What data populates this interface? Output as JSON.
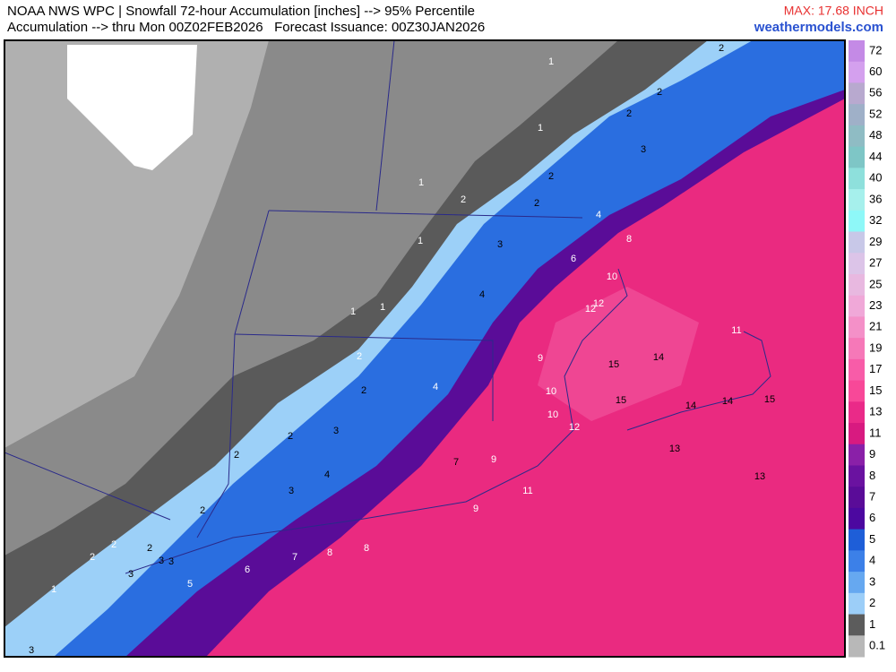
{
  "header": {
    "title_line1": "NOAA NWS WPC | Snowfall 72-hour Accumulation [inches] --> 95% Percentile",
    "title_line2": "Accumulation --> thru Mon 00Z02FEB2026   Forecast Issuance: 00Z30JAN2026",
    "max_label": "MAX: 17.68 INCH",
    "site": "weathermodels.com"
  },
  "colorbar": {
    "levels": [
      72,
      60,
      56,
      52,
      48,
      44,
      40,
      36,
      32,
      29,
      27,
      25,
      23,
      21,
      19,
      17,
      15,
      13,
      11,
      9,
      8,
      7,
      6,
      5,
      4,
      3,
      2,
      1,
      0.1
    ],
    "colors": [
      "#c48ae6",
      "#d4a0ee",
      "#b8a9cf",
      "#9fb0c8",
      "#8fbcc4",
      "#7ec6c6",
      "#8ee0dc",
      "#a6f0ec",
      "#8ef8f8",
      "#c8c8e8",
      "#dcc4e8",
      "#e8b8e0",
      "#f0a8d8",
      "#f490c8",
      "#f678b8",
      "#f85ca8",
      "#f84898",
      "#ea2a88",
      "#d81a80",
      "#8a20a8",
      "#6a12a0",
      "#5a0c98",
      "#4c08a0",
      "#1e5ed8",
      "#3c80e8",
      "#66a8f0",
      "#9ccef8",
      "#5c5c5c",
      "#b8b8b8"
    ]
  },
  "map": {
    "labels": [
      1,
      2,
      2,
      2,
      1,
      3,
      2,
      1,
      2,
      2,
      4,
      1,
      8,
      3,
      6,
      10,
      4,
      12,
      12,
      1,
      1,
      11,
      2,
      9,
      15,
      14,
      2,
      4,
      10,
      15,
      14,
      14,
      15,
      10,
      12,
      3,
      2,
      2,
      13,
      7,
      9,
      4,
      13,
      11,
      3,
      2,
      9,
      8,
      8,
      7,
      2,
      2,
      2,
      3,
      3,
      6,
      3,
      5,
      1,
      3
    ]
  }
}
